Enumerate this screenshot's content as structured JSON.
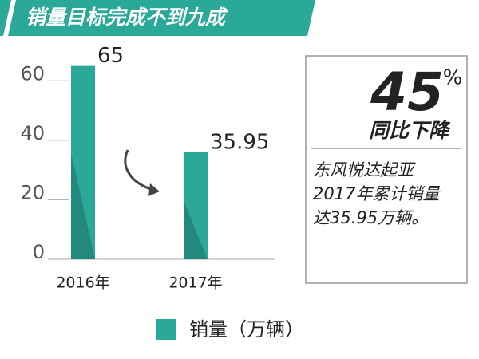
{
  "chart_data": {
    "type": "bar",
    "title": "销量目标完成不到九成",
    "categories": [
      "2016年",
      "2017年"
    ],
    "series": [
      {
        "name": "销量（万辆）",
        "color": "#2aa898",
        "values": [
          65,
          35.95
        ]
      }
    ],
    "ylim": [
      0,
      70
    ],
    "yticks": [
      0,
      20,
      40,
      60
    ],
    "callout": {
      "number": "45",
      "unit": "%",
      "headline": "同比下降",
      "lines": [
        "东风悦达起亚",
        "2017年累计销量",
        "达35.95万辆。"
      ]
    }
  }
}
